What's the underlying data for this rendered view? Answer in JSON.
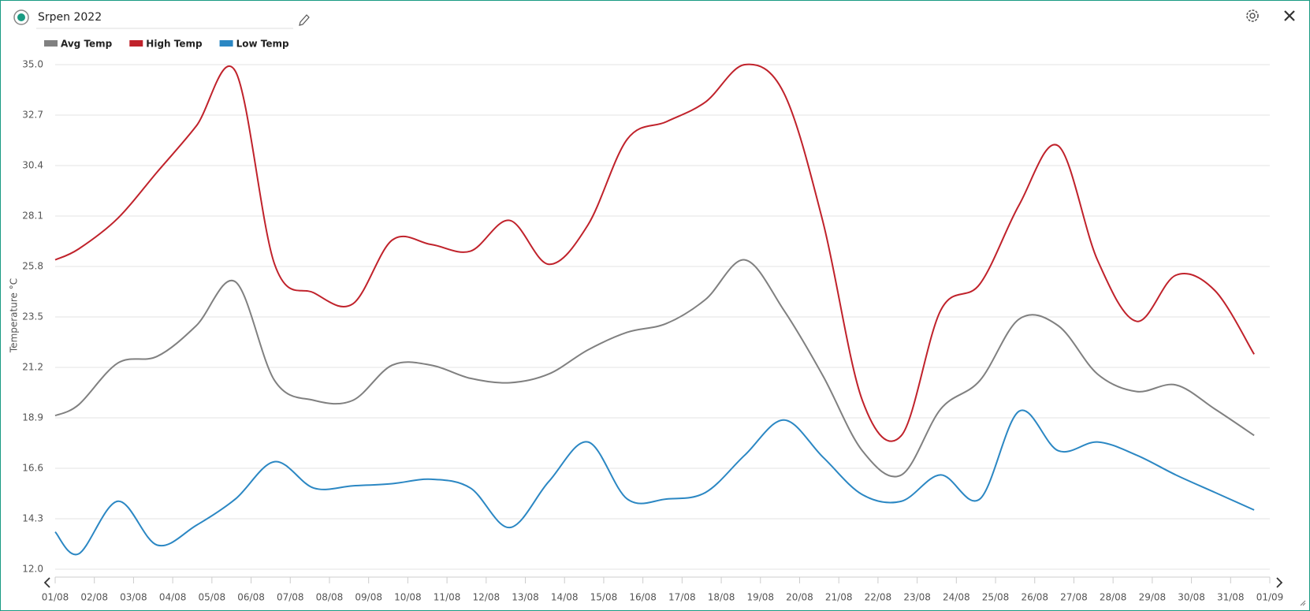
{
  "chart_data": {
    "type": "line",
    "title": "Srpen 2022",
    "y_label": "Temperature °C",
    "x": [
      0,
      0.6,
      1.6,
      2.6,
      3.6,
      4.6,
      5.6,
      6.6,
      7.6,
      8.6,
      9.6,
      10.6,
      11.6,
      12.6,
      13.6,
      14.6,
      15.6,
      16.6,
      17.6,
      18.6,
      19.6,
      20.6,
      21.6,
      22.6,
      23.6,
      24.6,
      25.6,
      26.6,
      27.6,
      28.6,
      29.6,
      30.6
    ],
    "xlim": [
      0,
      31
    ],
    "xticks": [
      {
        "value": 0,
        "label": "01/08"
      },
      {
        "value": 1,
        "label": "02/08"
      },
      {
        "value": 2,
        "label": "03/08"
      },
      {
        "value": 3,
        "label": "04/08"
      },
      {
        "value": 4,
        "label": "05/08"
      },
      {
        "value": 5,
        "label": "06/08"
      },
      {
        "value": 6,
        "label": "07/08"
      },
      {
        "value": 7,
        "label": "08/08"
      },
      {
        "value": 8,
        "label": "09/08"
      },
      {
        "value": 9,
        "label": "10/08"
      },
      {
        "value": 10,
        "label": "11/08"
      },
      {
        "value": 11,
        "label": "12/08"
      },
      {
        "value": 12,
        "label": "13/08"
      },
      {
        "value": 13,
        "label": "14/08"
      },
      {
        "value": 14,
        "label": "15/08"
      },
      {
        "value": 15,
        "label": "16/08"
      },
      {
        "value": 16,
        "label": "17/08"
      },
      {
        "value": 17,
        "label": "18/08"
      },
      {
        "value": 18,
        "label": "19/08"
      },
      {
        "value": 19,
        "label": "20/08"
      },
      {
        "value": 20,
        "label": "21/08"
      },
      {
        "value": 21,
        "label": "22/08"
      },
      {
        "value": 22,
        "label": "23/08"
      },
      {
        "value": 23,
        "label": "24/08"
      },
      {
        "value": 24,
        "label": "25/08"
      },
      {
        "value": 25,
        "label": "26/08"
      },
      {
        "value": 26,
        "label": "27/08"
      },
      {
        "value": 27,
        "label": "28/08"
      },
      {
        "value": 28,
        "label": "29/08"
      },
      {
        "value": 29,
        "label": "30/08"
      },
      {
        "value": 30,
        "label": "31/08"
      },
      {
        "value": 31,
        "label": "01/09"
      }
    ],
    "ylim": [
      12,
      35
    ],
    "yticks": [
      {
        "value": 12,
        "label": "12.0"
      },
      14.3,
      16.6,
      18.9,
      21.2,
      23.5,
      25.8,
      28.1,
      30.4,
      32.7,
      {
        "value": 35,
        "label": "35.0"
      }
    ],
    "grid": true,
    "legend": "top-left",
    "series": [
      {
        "name": "Avg Temp",
        "color": "#808080",
        "values": [
          19.0,
          19.5,
          21.4,
          21.7,
          23.1,
          25.1,
          20.6,
          19.7,
          19.7,
          21.3,
          21.3,
          20.7,
          20.5,
          20.9,
          22.0,
          22.8,
          23.2,
          24.3,
          26.1,
          23.8,
          20.8,
          17.4,
          16.3,
          19.3,
          20.6,
          23.4,
          23.1,
          20.9,
          20.1,
          20.4,
          19.3,
          18.1
        ]
      },
      {
        "name": "High Temp",
        "color": "#c0222b",
        "values": [
          26.1,
          26.6,
          28.0,
          30.1,
          32.2,
          34.7,
          25.9,
          24.6,
          24.1,
          27.0,
          26.8,
          26.5,
          27.9,
          25.9,
          27.7,
          31.6,
          32.4,
          33.3,
          35.0,
          33.7,
          27.8,
          19.7,
          18.1,
          23.8,
          25.0,
          28.6,
          31.3,
          26.1,
          23.3,
          25.4,
          24.7,
          21.8
        ]
      },
      {
        "name": "Low Temp",
        "color": "#2b87c3",
        "values": [
          13.7,
          12.7,
          15.1,
          13.1,
          14.0,
          15.2,
          16.9,
          15.7,
          15.8,
          15.9,
          16.1,
          15.7,
          13.9,
          16.0,
          17.8,
          15.2,
          15.2,
          15.5,
          17.2,
          18.8,
          17.1,
          15.4,
          15.1,
          16.3,
          15.2,
          19.2,
          17.4,
          17.8,
          17.2,
          16.3,
          15.5,
          14.7
        ]
      }
    ]
  }
}
